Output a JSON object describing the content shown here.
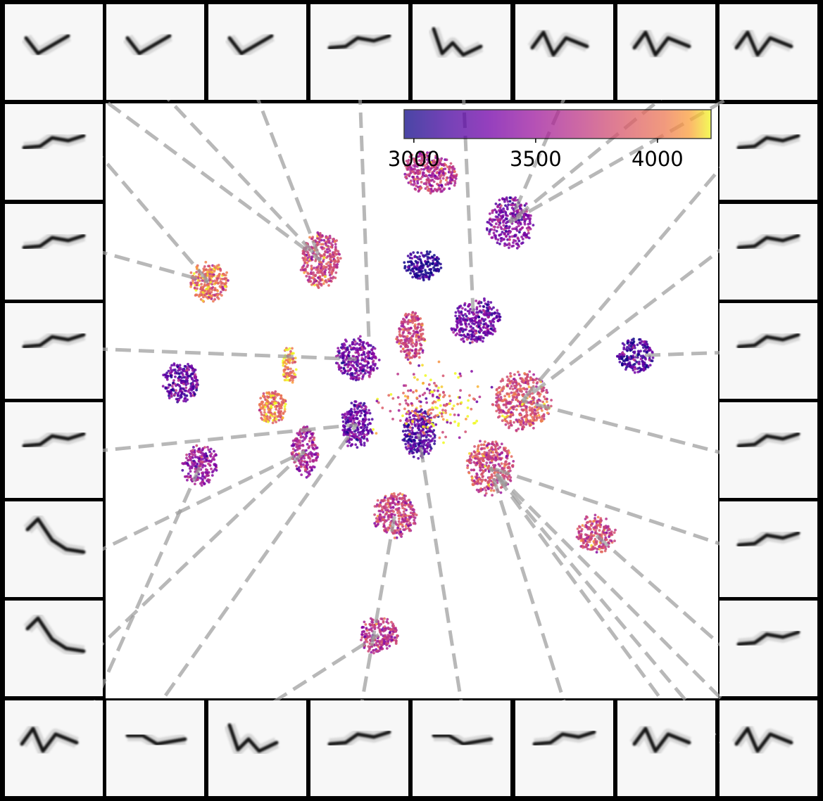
{
  "chart_data": {
    "type": "scatter",
    "colormap": "plasma",
    "colorbar": {
      "range": [
        2960,
        4220
      ],
      "ticks": [
        3000,
        3500,
        4000
      ],
      "tick_labels": [
        "3000",
        "3500",
        "4000"
      ],
      "placement": "top-right"
    },
    "grid": false,
    "legend": "none",
    "series": [
      {
        "cx": 0.53,
        "cy": 0.117,
        "rx": 0.045,
        "ry": 0.035,
        "rot": 15,
        "value": 3650,
        "n": 340
      },
      {
        "cx": 0.66,
        "cy": 0.2,
        "rx": 0.038,
        "ry": 0.045,
        "rot": 0,
        "value": 3380,
        "n": 300
      },
      {
        "cx": 0.518,
        "cy": 0.272,
        "rx": 0.03,
        "ry": 0.026,
        "rot": 0,
        "value": 3020,
        "n": 170
      },
      {
        "cx": 0.351,
        "cy": 0.264,
        "rx": 0.034,
        "ry": 0.048,
        "rot": 0,
        "value": 3750,
        "n": 340
      },
      {
        "cx": 0.168,
        "cy": 0.3,
        "rx": 0.033,
        "ry": 0.033,
        "rot": 0,
        "value": 3950,
        "n": 260
      },
      {
        "cx": 0.604,
        "cy": 0.366,
        "rx": 0.042,
        "ry": 0.036,
        "rot": -20,
        "value": 3300,
        "n": 300
      },
      {
        "cx": 0.499,
        "cy": 0.392,
        "rx": 0.024,
        "ry": 0.044,
        "rot": 0,
        "value": 3750,
        "n": 230
      },
      {
        "cx": 0.41,
        "cy": 0.43,
        "rx": 0.036,
        "ry": 0.037,
        "rot": -20,
        "value": 3350,
        "n": 280
      },
      {
        "cx": 0.865,
        "cy": 0.424,
        "rx": 0.032,
        "ry": 0.03,
        "rot": 0,
        "value": 3180,
        "n": 200
      },
      {
        "cx": 0.123,
        "cy": 0.468,
        "rx": 0.03,
        "ry": 0.035,
        "rot": 0,
        "value": 3240,
        "n": 230
      },
      {
        "cx": 0.272,
        "cy": 0.51,
        "rx": 0.024,
        "ry": 0.028,
        "rot": 0,
        "value": 3990,
        "n": 180
      },
      {
        "cx": 0.3,
        "cy": 0.44,
        "rx": 0.012,
        "ry": 0.035,
        "rot": 0,
        "value": 4050,
        "n": 90
      },
      {
        "cx": 0.68,
        "cy": 0.5,
        "rx": 0.048,
        "ry": 0.05,
        "rot": 0,
        "value": 3820,
        "n": 430
      },
      {
        "cx": 0.41,
        "cy": 0.54,
        "rx": 0.027,
        "ry": 0.04,
        "rot": 0,
        "value": 3260,
        "n": 240
      },
      {
        "cx": 0.511,
        "cy": 0.555,
        "rx": 0.027,
        "ry": 0.043,
        "rot": 0,
        "value": 3180,
        "n": 260
      },
      {
        "cx": 0.325,
        "cy": 0.585,
        "rx": 0.022,
        "ry": 0.045,
        "rot": 0,
        "value": 3550,
        "n": 210
      },
      {
        "cx": 0.155,
        "cy": 0.608,
        "rx": 0.03,
        "ry": 0.036,
        "rot": 0,
        "value": 3470,
        "n": 200
      },
      {
        "cx": 0.628,
        "cy": 0.612,
        "rx": 0.038,
        "ry": 0.048,
        "rot": 0,
        "value": 3780,
        "n": 360
      },
      {
        "cx": 0.472,
        "cy": 0.692,
        "rx": 0.036,
        "ry": 0.037,
        "rot": 0,
        "value": 3700,
        "n": 290
      },
      {
        "cx": 0.8,
        "cy": 0.725,
        "rx": 0.033,
        "ry": 0.033,
        "rot": -20,
        "value": 3780,
        "n": 210
      },
      {
        "cx": 0.446,
        "cy": 0.893,
        "rx": 0.033,
        "ry": 0.032,
        "rot": -25,
        "value": 3620,
        "n": 220
      },
      {
        "cx": 0.53,
        "cy": 0.505,
        "rx": 0.08,
        "ry": 0.06,
        "rot": 0,
        "value": 3900,
        "n": 200
      }
    ]
  },
  "thumbnails": [
    {
      "pos": "t0",
      "target": [
        0.351,
        0.264
      ],
      "glyph": "v"
    },
    {
      "pos": "t1",
      "target": [
        0.351,
        0.264
      ],
      "glyph": "v"
    },
    {
      "pos": "t2",
      "target": [
        0.351,
        0.264
      ],
      "glyph": "v"
    },
    {
      "pos": "t3",
      "target": [
        0.43,
        0.4
      ],
      "glyph": "wave"
    },
    {
      "pos": "t4",
      "target": [
        0.6,
        0.35
      ],
      "glyph": "vshape"
    },
    {
      "pos": "t5",
      "target": [
        0.66,
        0.2
      ],
      "glyph": "zigzag"
    },
    {
      "pos": "t6",
      "target": [
        0.66,
        0.2
      ],
      "glyph": "zigzag"
    },
    {
      "pos": "t7",
      "target": [
        0.66,
        0.2
      ],
      "glyph": "zigzag"
    },
    {
      "pos": "r0",
      "target": [
        0.68,
        0.5
      ],
      "glyph": "wave"
    },
    {
      "pos": "r1",
      "target": [
        0.68,
        0.5
      ],
      "glyph": "wave"
    },
    {
      "pos": "r2",
      "target": [
        0.865,
        0.424
      ],
      "glyph": "wave"
    },
    {
      "pos": "r3",
      "target": [
        0.68,
        0.5
      ],
      "glyph": "wave"
    },
    {
      "pos": "r4",
      "target": [
        0.628,
        0.612
      ],
      "glyph": "wave"
    },
    {
      "pos": "r5",
      "target": [
        0.8,
        0.725
      ],
      "glyph": "wave"
    },
    {
      "pos": "r6",
      "target": [
        0.628,
        0.612
      ],
      "glyph": "block"
    },
    {
      "pos": "l0",
      "target": [
        0.168,
        0.3
      ],
      "glyph": "wave"
    },
    {
      "pos": "l1",
      "target": [
        0.168,
        0.3
      ],
      "glyph": "wave"
    },
    {
      "pos": "l2",
      "target": [
        0.41,
        0.43
      ],
      "glyph": "wave"
    },
    {
      "pos": "l3",
      "target": [
        0.41,
        0.54
      ],
      "glyph": "wave"
    },
    {
      "pos": "l4",
      "target": [
        0.325,
        0.585
      ],
      "glyph": "slope"
    },
    {
      "pos": "l5",
      "target": [
        0.325,
        0.585
      ],
      "glyph": "slope"
    },
    {
      "pos": "b0",
      "target": [
        0.155,
        0.608
      ],
      "glyph": "zigzag"
    },
    {
      "pos": "b1",
      "target": [
        0.41,
        0.54
      ],
      "glyph": "block"
    },
    {
      "pos": "b2",
      "target": [
        0.446,
        0.893
      ],
      "glyph": "vshape"
    },
    {
      "pos": "b3",
      "target": [
        0.472,
        0.692
      ],
      "glyph": "wave"
    },
    {
      "pos": "b4",
      "target": [
        0.511,
        0.555
      ],
      "glyph": "block"
    },
    {
      "pos": "b5",
      "target": [
        0.628,
        0.612
      ],
      "glyph": "wave"
    },
    {
      "pos": "b6",
      "target": [
        0.628,
        0.612
      ],
      "glyph": "zigzag"
    },
    {
      "pos": "b7",
      "target": [
        0.628,
        0.612
      ],
      "glyph": "zigzag"
    }
  ]
}
